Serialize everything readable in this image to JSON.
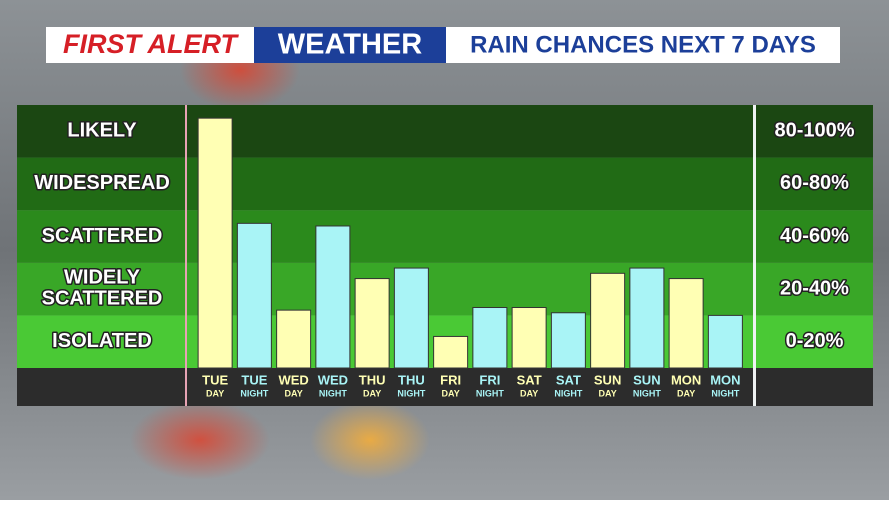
{
  "chart_data": {
    "type": "bar",
    "header": {
      "brand_first": "FIRST ALERT",
      "brand_second": "WEATHER",
      "title": "RAIN CHANCES NEXT 7 DAYS"
    },
    "categories": [
      "TUE",
      "TUE",
      "WED",
      "WED",
      "THU",
      "THU",
      "FRI",
      "FRI",
      "SAT",
      "SAT",
      "SUN",
      "SUN",
      "MON",
      "MON"
    ],
    "periods": [
      "DAY",
      "NIGHT",
      "DAY",
      "NIGHT",
      "DAY",
      "NIGHT",
      "DAY",
      "NIGHT",
      "DAY",
      "NIGHT",
      "DAY",
      "NIGHT",
      "DAY",
      "NIGHT"
    ],
    "values": [
      95,
      55,
      22,
      54,
      34,
      38,
      12,
      23,
      23,
      21,
      36,
      38,
      34,
      20
    ],
    "colors": [
      "#ffffb4",
      "#a9f4f6",
      "#ffffb4",
      "#a9f4f6",
      "#ffffb4",
      "#a9f4f6",
      "#ffffb4",
      "#a9f4f6",
      "#ffffb4",
      "#a9f4f6",
      "#ffffb4",
      "#a9f4f6",
      "#ffffb4",
      "#a9f4f6"
    ],
    "ylim": [
      0,
      100
    ],
    "bands": [
      {
        "label": "LIKELY",
        "range_label": "80-100%",
        "from": 80,
        "to": 100,
        "color": "#1b4712"
      },
      {
        "label": "WIDESPREAD",
        "range_label": "60-80%",
        "from": 60,
        "to": 80,
        "color": "#216b15"
      },
      {
        "label": "SCATTERED",
        "range_label": "40-60%",
        "from": 40,
        "to": 60,
        "color": "#2b8a1c"
      },
      {
        "label": "WIDELY SCATTERED",
        "range_label": "20-40%",
        "from": 20,
        "to": 40,
        "color": "#39a727"
      },
      {
        "label": "ISOLATED",
        "range_label": "0-20%",
        "from": 0,
        "to": 20,
        "color": "#4ac935"
      }
    ]
  }
}
